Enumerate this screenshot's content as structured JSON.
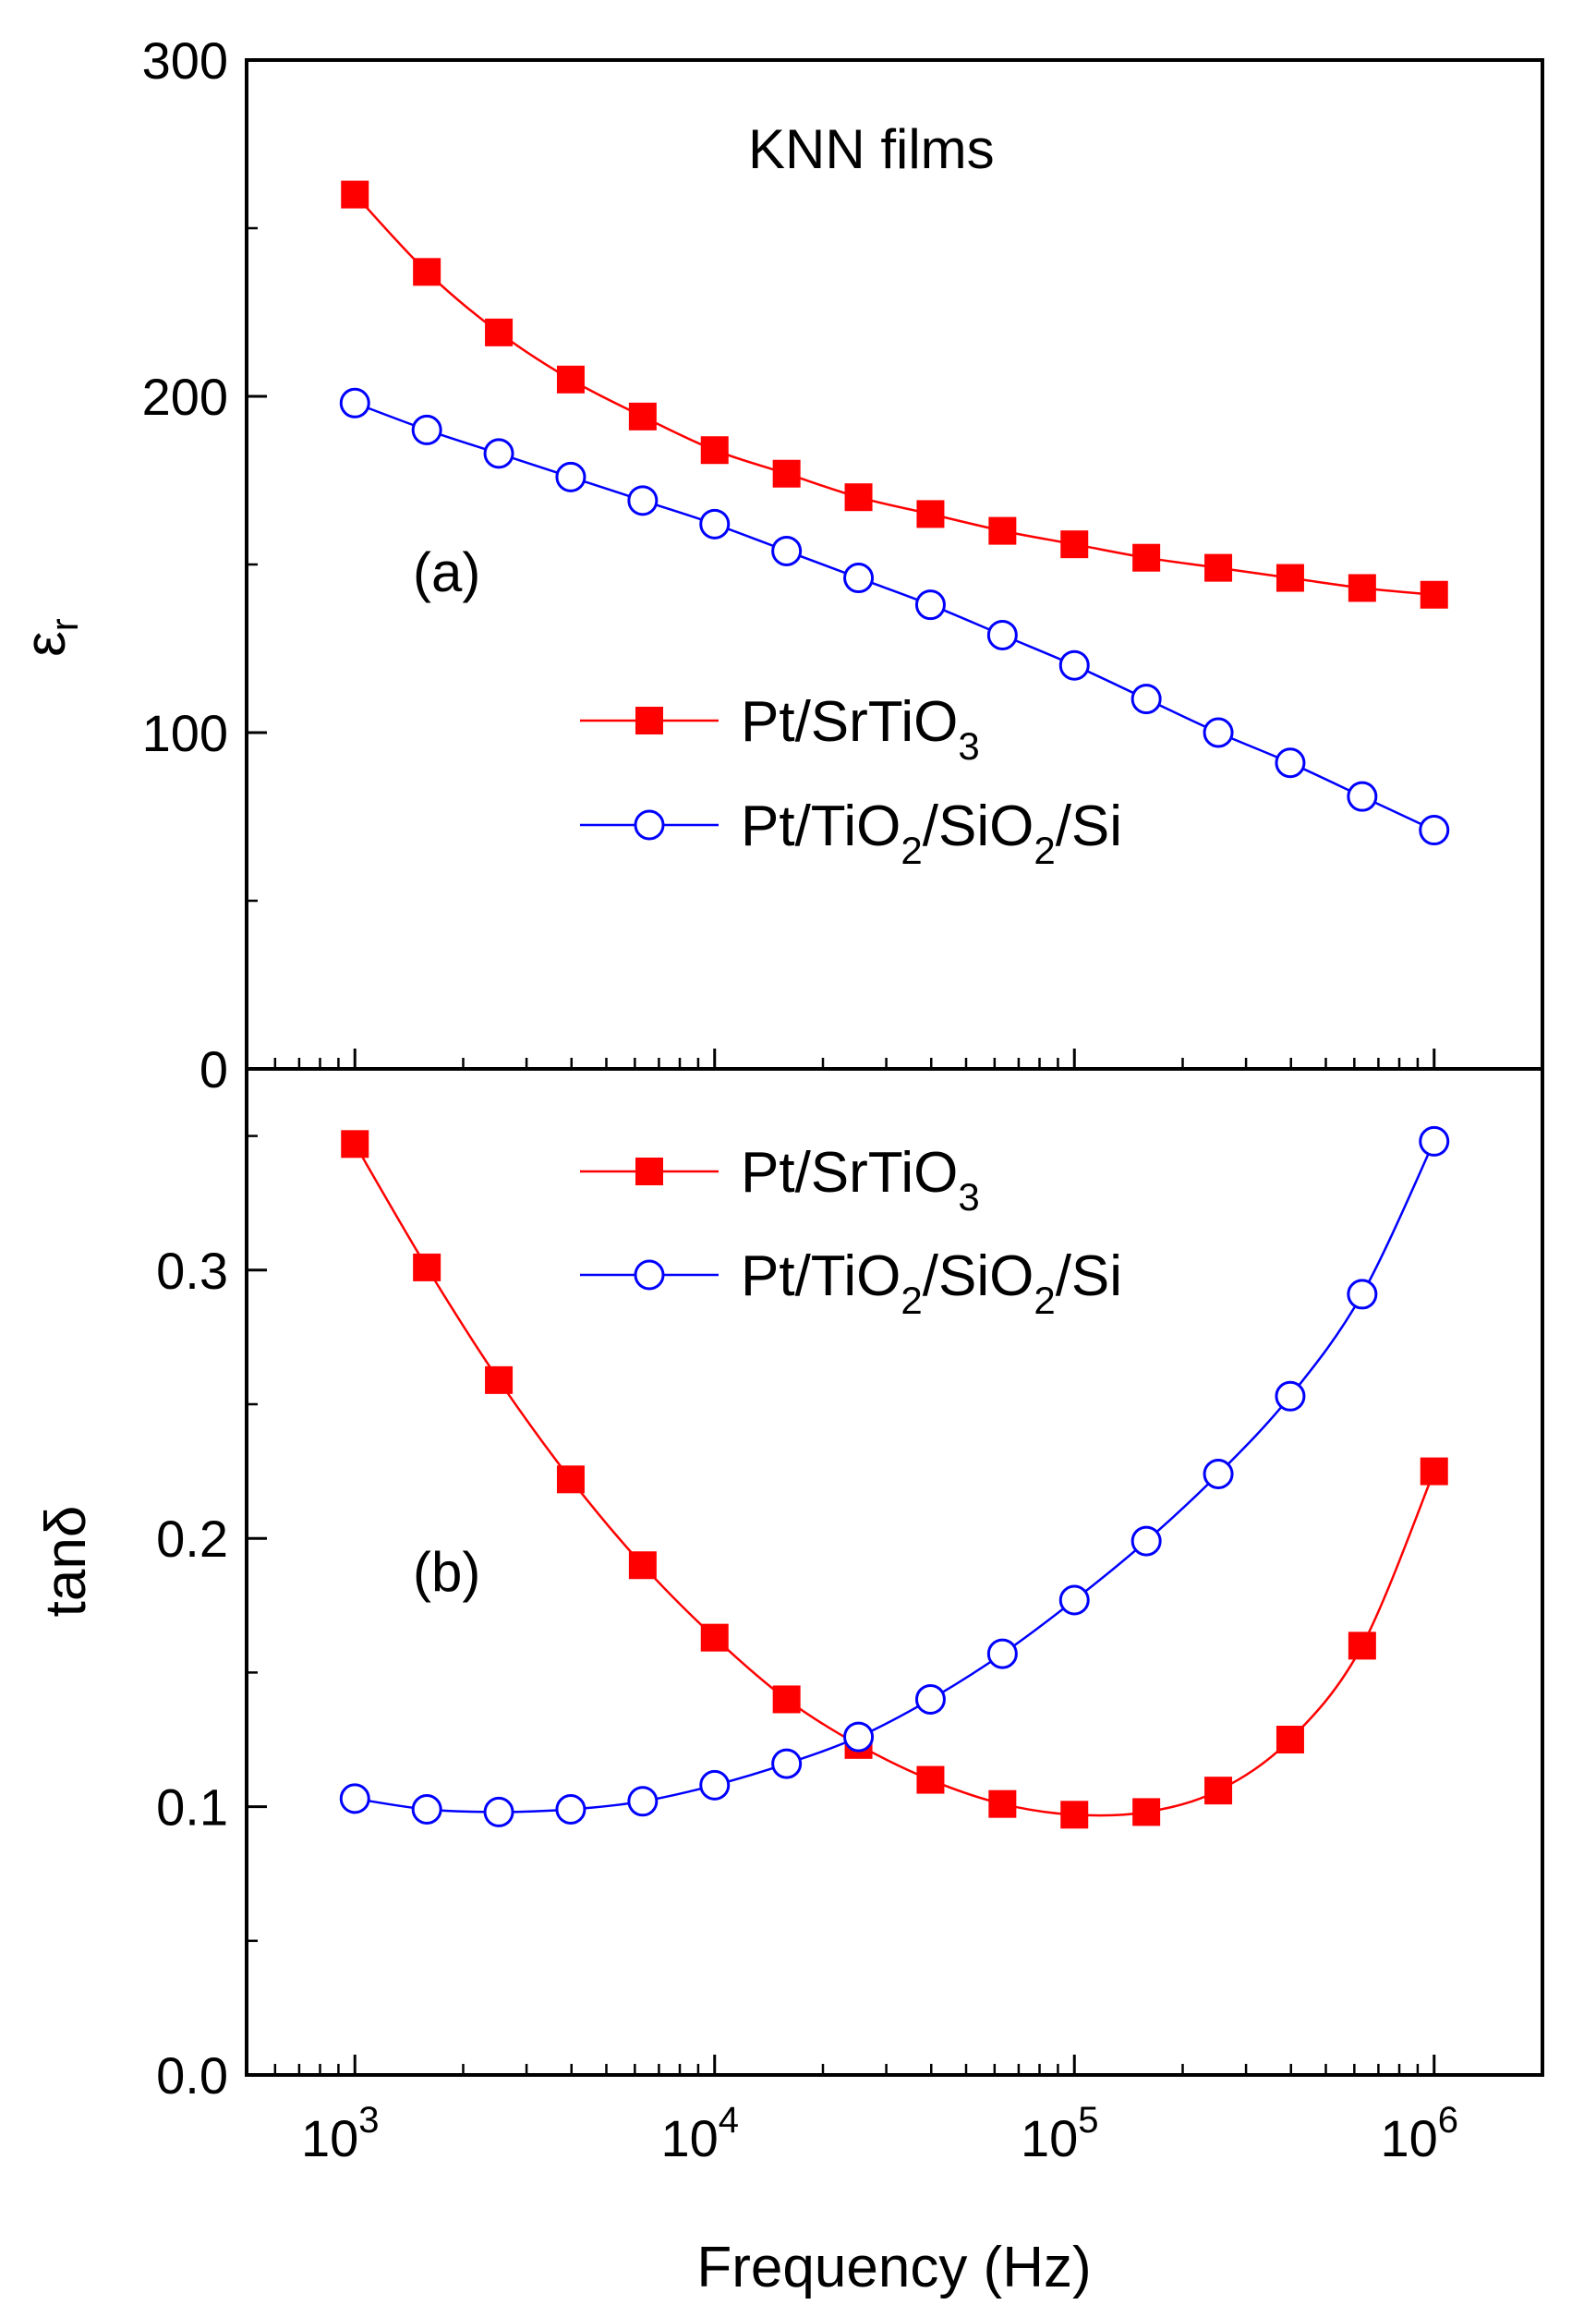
{
  "colors": {
    "series_a": "#ff0000",
    "series_b": "#0000ff",
    "axis": "#000000"
  },
  "chart_data": [
    {
      "panel": "a",
      "type": "line",
      "title": "KNN films",
      "annotation": "(a)",
      "ylabel": "ε",
      "ylabel_sub": "r",
      "xscale": "log",
      "xlim": [
        500,
        2000000
      ],
      "ylim": [
        0,
        300
      ],
      "y_ticks": [
        0,
        100,
        200,
        300
      ],
      "y_tick_labels": [
        "0",
        "100",
        "200",
        "300"
      ],
      "x": [
        1000,
        1585,
        2512,
        3981,
        6310,
        10000,
        15849,
        25119,
        39811,
        63096,
        100000,
        158489,
        251189,
        398107,
        630957,
        1000000
      ],
      "legend_position": "center-right",
      "series": [
        {
          "name": "Pt/SrTiO",
          "name_sub": "3",
          "marker": "filled-square",
          "color": "#ff0000",
          "values": [
            260,
            237,
            219,
            205,
            194,
            184,
            177,
            170,
            165,
            160,
            156,
            152,
            149,
            146,
            143,
            141
          ]
        },
        {
          "name": "Pt/TiO",
          "name_parts": [
            "Pt/TiO",
            "2",
            "/SiO",
            "2",
            "/Si"
          ],
          "marker": "open-circle",
          "color": "#0000ff",
          "values": [
            198,
            190,
            183,
            176,
            169,
            162,
            154,
            146,
            138,
            129,
            120,
            110,
            100,
            91,
            81,
            71
          ]
        }
      ]
    },
    {
      "panel": "b",
      "type": "line",
      "annotation": "(b)",
      "ylabel": "tanδ",
      "xlabel": "Frequency (Hz)",
      "xscale": "log",
      "xlim": [
        500,
        2000000
      ],
      "ylim": [
        0,
        0.375
      ],
      "y_ticks": [
        0,
        0.1,
        0.2,
        0.3
      ],
      "y_tick_labels": [
        "0.0",
        "0.1",
        "0.2",
        "0.3"
      ],
      "x_ticks": [
        1000,
        10000,
        100000,
        1000000
      ],
      "x_tick_bases": [
        "10",
        "10",
        "10",
        "10"
      ],
      "x_tick_exps": [
        "3",
        "4",
        "5",
        "6"
      ],
      "x": [
        1000,
        1585,
        2512,
        3981,
        6310,
        10000,
        15849,
        25119,
        39811,
        63096,
        100000,
        158489,
        251189,
        398107,
        630957,
        1000000
      ],
      "legend_position": "top-right",
      "series": [
        {
          "name": "Pt/SrTiO",
          "name_sub": "3",
          "marker": "filled-square",
          "color": "#ff0000",
          "values": [
            0.347,
            0.301,
            0.259,
            0.222,
            0.19,
            0.163,
            0.14,
            0.123,
            0.11,
            0.101,
            0.097,
            0.098,
            0.106,
            0.125,
            0.16,
            0.225
          ]
        },
        {
          "name": "Pt/TiO",
          "name_parts": [
            "Pt/TiO",
            "2",
            "/SiO",
            "2",
            "/Si"
          ],
          "marker": "open-circle",
          "color": "#0000ff",
          "values": [
            0.103,
            0.099,
            0.098,
            0.099,
            0.102,
            0.108,
            0.116,
            0.126,
            0.14,
            0.157,
            0.177,
            0.199,
            0.224,
            0.253,
            0.291,
            0.348
          ]
        }
      ]
    }
  ]
}
